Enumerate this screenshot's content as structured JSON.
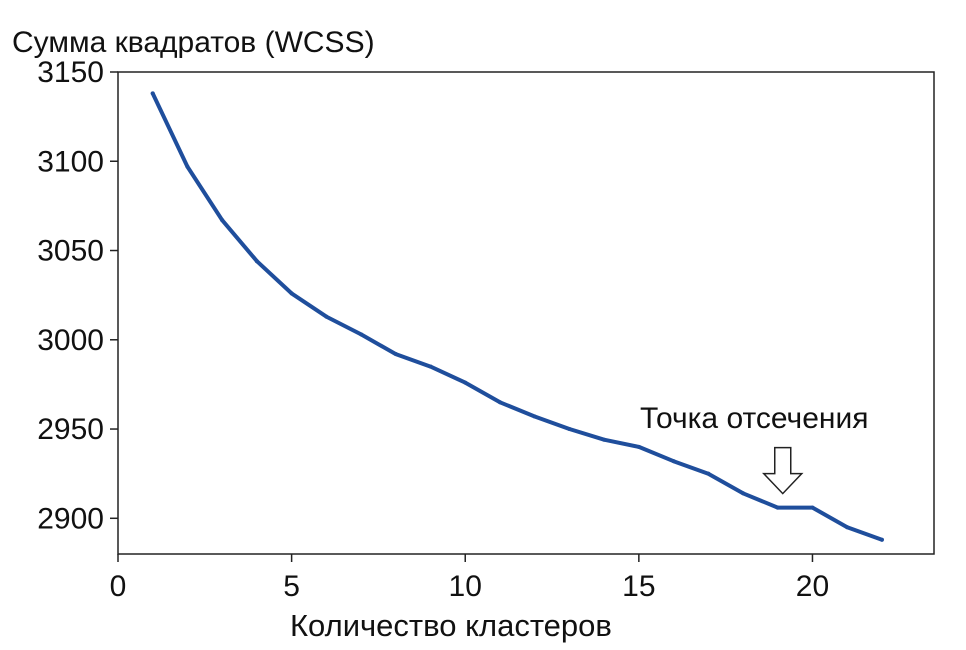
{
  "chart_data": {
    "type": "line",
    "title": "",
    "ylabel": "Сумма квадратов (WCSS)",
    "xlabel": "Количество кластеров",
    "xlim": [
      0,
      23.5
    ],
    "ylim": [
      2880,
      3150
    ],
    "xticks": [
      0,
      5,
      10,
      15,
      20
    ],
    "yticks": [
      2900,
      2950,
      3000,
      3050,
      3100,
      3150
    ],
    "grid": false,
    "line_color": "#1f4e9c",
    "series": [
      {
        "x": [
          1,
          2,
          3,
          4,
          5,
          6,
          7,
          8,
          9,
          10,
          11,
          12,
          13,
          14,
          15,
          16,
          17,
          18,
          19,
          20,
          21,
          22
        ],
        "values": [
          3138,
          3097,
          3067,
          3044,
          3026,
          3013,
          3003,
          2992,
          2985,
          2976,
          2965,
          2957,
          2950,
          2944,
          2940,
          2932,
          2925,
          2914,
          2906,
          2906,
          2895,
          2888
        ]
      }
    ],
    "annotation": {
      "text": "Точка отсечения",
      "x": 19,
      "y": 2906
    }
  }
}
